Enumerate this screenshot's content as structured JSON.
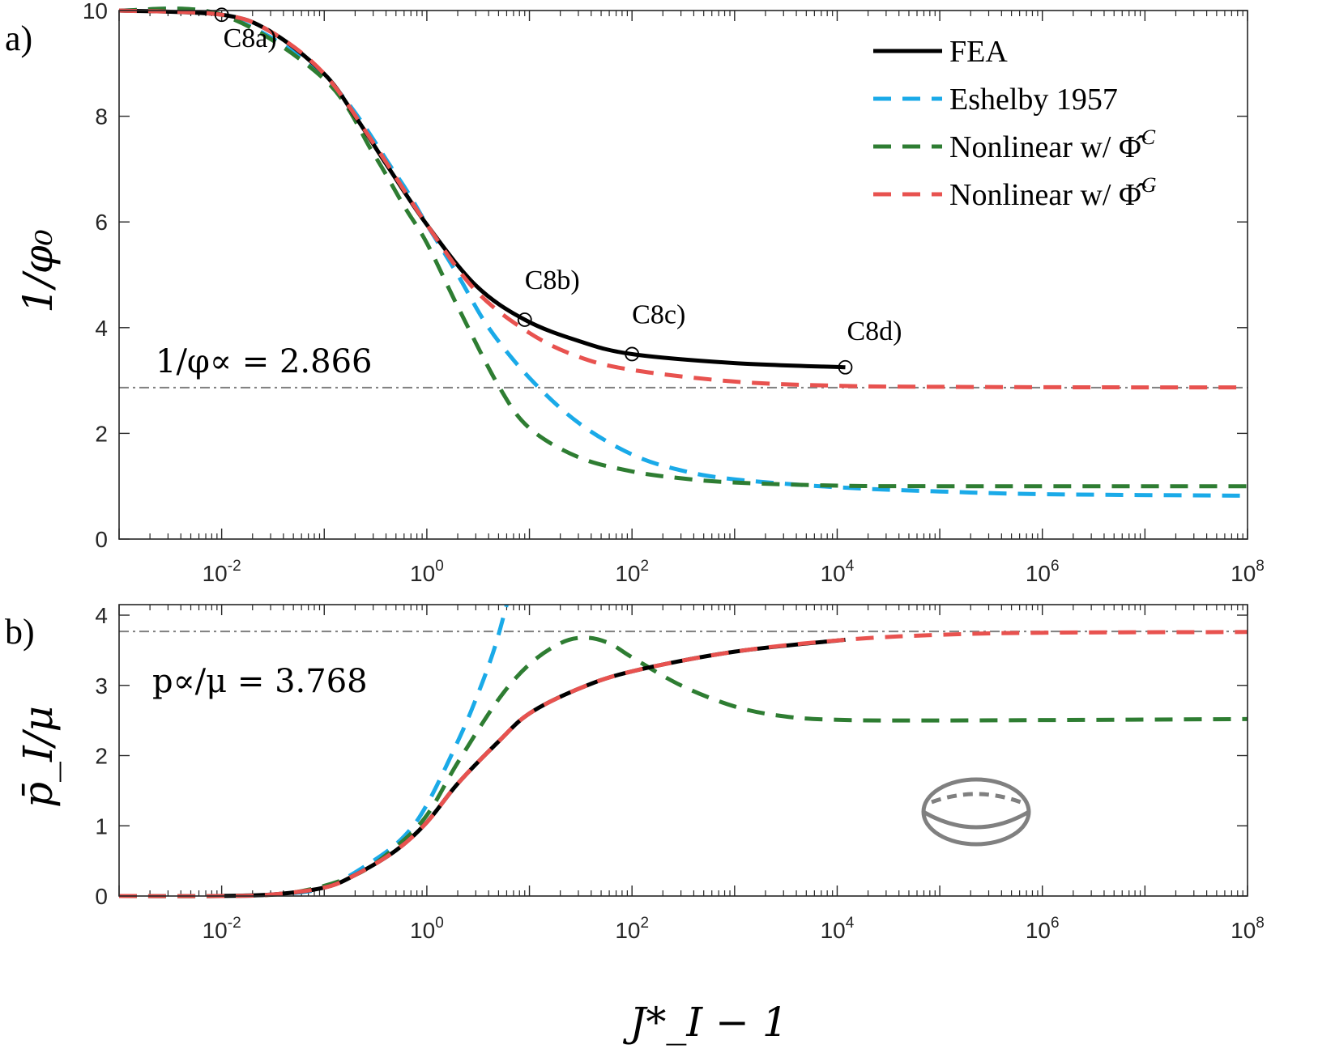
{
  "colors": {
    "fea": "#000000",
    "eshelby": "#1aaae8",
    "nonlinear_c": "#2e7d32",
    "nonlinear_g": "#e8524f",
    "reference": "#7f7f7f",
    "inclusion": "#808080"
  },
  "icons": {
    "inclusion": "oblate-ellipsoid-icon"
  },
  "chart_data": [
    {
      "type": "line",
      "panel_label": "a)",
      "xlabel": "",
      "ylabel": "1/φ₀",
      "x_scale": "log",
      "xlim": [
        0.001,
        100000000
      ],
      "ylim": [
        0,
        10
      ],
      "x_ticks": [
        {
          "value": 0.01,
          "base": "10",
          "exp": "-2"
        },
        {
          "value": 1,
          "base": "10",
          "exp": "0"
        },
        {
          "value": 100,
          "base": "10",
          "exp": "2"
        },
        {
          "value": 10000,
          "base": "10",
          "exp": "4"
        },
        {
          "value": 1000000,
          "base": "10",
          "exp": "6"
        },
        {
          "value": 100000000,
          "base": "10",
          "exp": "8"
        }
      ],
      "y_ticks": [
        "0",
        "2",
        "4",
        "6",
        "8",
        "10"
      ],
      "legend_position": "top-right",
      "legend": [
        {
          "name": "FEA",
          "series": "fea"
        },
        {
          "name": "Eshelby 1957",
          "series": "eshelby"
        },
        {
          "name": "Nonlinear w/ Φ̂",
          "sup": "C",
          "series": "nonlinear_c"
        },
        {
          "name": "Nonlinear w/ Φ̂",
          "sup": "G",
          "series": "nonlinear_g"
        }
      ],
      "reference_line": {
        "y": 2.866,
        "label": "1/φ∝ = 2.866"
      },
      "annotations": [
        {
          "label": "C8a)",
          "x": 0.01,
          "y": 9.92
        },
        {
          "label": "C8b)",
          "x": 9,
          "y": 4.15
        },
        {
          "label": "C8c)",
          "x": 100,
          "y": 3.5
        },
        {
          "label": "C8d)",
          "x": 12000,
          "y": 3.25
        }
      ],
      "series": [
        {
          "key": "fea",
          "name": "FEA",
          "style": "solid",
          "points": [
            [
              0.001,
              10
            ],
            [
              0.01,
              9.92
            ],
            [
              0.03,
              9.6
            ],
            [
              0.1,
              8.8
            ],
            [
              0.2,
              8.0
            ],
            [
              0.4,
              7.1
            ],
            [
              1,
              5.95
            ],
            [
              3,
              4.8
            ],
            [
              9,
              4.15
            ],
            [
              30,
              3.75
            ],
            [
              100,
              3.5
            ],
            [
              1000,
              3.33
            ],
            [
              12000,
              3.25
            ]
          ]
        },
        {
          "key": "eshelby",
          "name": "Eshelby 1957",
          "style": "dashed",
          "points": [
            [
              0.001,
              10
            ],
            [
              0.01,
              9.92
            ],
            [
              0.1,
              8.75
            ],
            [
              0.5,
              6.9
            ],
            [
              1,
              5.95
            ],
            [
              2,
              5.0
            ],
            [
              4,
              4.0
            ],
            [
              10,
              3.05
            ],
            [
              30,
              2.2
            ],
            [
              100,
              1.6
            ],
            [
              300,
              1.3
            ],
            [
              1000,
              1.13
            ],
            [
              10000,
              0.98
            ],
            [
              100000,
              0.9
            ],
            [
              1000000,
              0.85
            ],
            [
              100000000,
              0.82
            ]
          ]
        },
        {
          "key": "nonlinear_c",
          "name": "Nonlinear w/ Φ̂C",
          "style": "dashed",
          "points": [
            [
              0.001,
              10
            ],
            [
              0.01,
              9.92
            ],
            [
              0.1,
              8.7
            ],
            [
              0.3,
              7.3
            ],
            [
              0.6,
              6.3
            ],
            [
              1,
              5.6
            ],
            [
              2,
              4.4
            ],
            [
              5,
              2.9
            ],
            [
              10,
              2.1
            ],
            [
              30,
              1.55
            ],
            [
              100,
              1.28
            ],
            [
              300,
              1.15
            ],
            [
              1000,
              1.07
            ],
            [
              10000,
              1.01
            ],
            [
              100000,
              1.0
            ],
            [
              100000000,
              1.0
            ]
          ]
        },
        {
          "key": "nonlinear_g",
          "name": "Nonlinear w/ Φ̂G",
          "style": "dashed",
          "points": [
            [
              0.001,
              10
            ],
            [
              0.01,
              9.92
            ],
            [
              0.03,
              9.6
            ],
            [
              0.1,
              8.8
            ],
            [
              0.3,
              7.5
            ],
            [
              1,
              5.95
            ],
            [
              3,
              4.7
            ],
            [
              10,
              3.9
            ],
            [
              30,
              3.45
            ],
            [
              100,
              3.2
            ],
            [
              1000,
              2.98
            ],
            [
              10000,
              2.9
            ],
            [
              100000,
              2.88
            ],
            [
              10000000,
              2.87
            ],
            [
              100000000,
              2.87
            ]
          ]
        }
      ]
    },
    {
      "type": "line",
      "panel_label": "b)",
      "xlabel": "J*_I − 1",
      "ylabel": "p̄_I/μ",
      "x_scale": "log",
      "xlim": [
        0.001,
        100000000
      ],
      "ylim": [
        0,
        4.15
      ],
      "x_ticks": [
        {
          "value": 0.01,
          "base": "10",
          "exp": "-2"
        },
        {
          "value": 1,
          "base": "10",
          "exp": "0"
        },
        {
          "value": 100,
          "base": "10",
          "exp": "2"
        },
        {
          "value": 10000,
          "base": "10",
          "exp": "4"
        },
        {
          "value": 1000000,
          "base": "10",
          "exp": "6"
        },
        {
          "value": 100000000,
          "base": "10",
          "exp": "8"
        }
      ],
      "y_ticks": [
        "0",
        "1",
        "2",
        "3",
        "4"
      ],
      "reference_line": {
        "y": 3.768,
        "label": "p∝/μ = 3.768"
      },
      "series": [
        {
          "key": "fea",
          "name": "FEA",
          "style": "solid",
          "points": [
            [
              0.008,
              0
            ],
            [
              0.03,
              0.02
            ],
            [
              0.1,
              0.12
            ],
            [
              0.2,
              0.3
            ],
            [
              0.5,
              0.65
            ],
            [
              1,
              1.05
            ],
            [
              2,
              1.6
            ],
            [
              5,
              2.2
            ],
            [
              10,
              2.6
            ],
            [
              30,
              2.95
            ],
            [
              100,
              3.2
            ],
            [
              1000,
              3.48
            ],
            [
              12000,
              3.65
            ]
          ]
        },
        {
          "key": "eshelby",
          "name": "Eshelby 1957",
          "style": "dashed",
          "points": [
            [
              0.001,
              0
            ],
            [
              0.01,
              0
            ],
            [
              0.03,
              0.02
            ],
            [
              0.1,
              0.12
            ],
            [
              0.3,
              0.5
            ],
            [
              0.6,
              0.85
            ],
            [
              1,
              1.3
            ],
            [
              2,
              2.2
            ],
            [
              3,
              2.8
            ],
            [
              4.5,
              3.5
            ],
            [
              6,
              4.15
            ]
          ]
        },
        {
          "key": "nonlinear_c",
          "name": "Nonlinear w/ Φ̂C",
          "style": "dashed",
          "points": [
            [
              0.001,
              0
            ],
            [
              0.01,
              0
            ],
            [
              0.05,
              0.05
            ],
            [
              0.2,
              0.3
            ],
            [
              0.5,
              0.7
            ],
            [
              1,
              1.15
            ],
            [
              2,
              1.9
            ],
            [
              5,
              2.8
            ],
            [
              10,
              3.3
            ],
            [
              20,
              3.6
            ],
            [
              35,
              3.68
            ],
            [
              60,
              3.6
            ],
            [
              100,
              3.4
            ],
            [
              300,
              3.0
            ],
            [
              1000,
              2.7
            ],
            [
              3000,
              2.56
            ],
            [
              10000,
              2.51
            ],
            [
              100000,
              2.5
            ],
            [
              100000000,
              2.52
            ]
          ]
        },
        {
          "key": "nonlinear_g",
          "name": "Nonlinear w/ Φ̂G",
          "style": "dashed",
          "points": [
            [
              0.001,
              0
            ],
            [
              0.01,
              0
            ],
            [
              0.03,
              0.02
            ],
            [
              0.1,
              0.12
            ],
            [
              0.2,
              0.3
            ],
            [
              0.5,
              0.65
            ],
            [
              1,
              1.05
            ],
            [
              2,
              1.6
            ],
            [
              5,
              2.2
            ],
            [
              10,
              2.6
            ],
            [
              30,
              2.95
            ],
            [
              100,
              3.2
            ],
            [
              1000,
              3.48
            ],
            [
              12000,
              3.65
            ],
            [
              100000,
              3.72
            ],
            [
              1000000,
              3.75
            ],
            [
              100000000,
              3.76
            ]
          ]
        }
      ]
    }
  ]
}
